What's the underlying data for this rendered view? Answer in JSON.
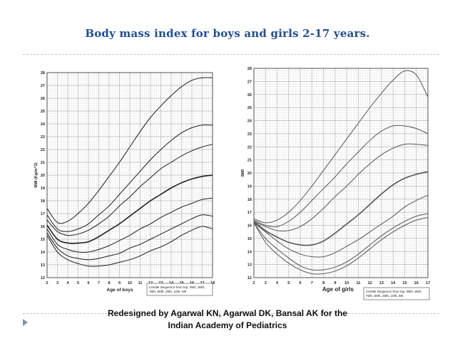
{
  "slide": {
    "title": "Body mass index for  boys and girls 2-17 years.",
    "credit_line1": "Redesigned by Agarwal KN, Agarwal DK, Bansal AK for the",
    "credit_line2": "Indian Academy of Pediatrics"
  },
  "colors": {
    "title": "#1f4e9a",
    "curve_boys": "#222222",
    "curve_girls": "#555555",
    "grid": "#c8c8c8"
  },
  "chart_data": [
    {
      "type": "line",
      "xlabel": "Age of boys",
      "ylabel": "BMI (Kg/m^2)",
      "xlim": [
        2,
        18
      ],
      "ylim": [
        12,
        28
      ],
      "x_ticks": [
        2,
        3,
        4,
        5,
        6,
        7,
        8,
        9,
        10,
        11,
        12,
        13,
        14,
        15,
        16,
        17,
        18
      ],
      "y_ticks": [
        12,
        13,
        14,
        15,
        16,
        17,
        18,
        19,
        20,
        21,
        22,
        23,
        24,
        25,
        26,
        27,
        28
      ],
      "grid": true,
      "legend_note": "Centile Sequence from top: 95th, 85th, 75th, 50th, 25th, 10th, 5th",
      "x": [
        2,
        3,
        4,
        5,
        6,
        7,
        8,
        9,
        10,
        11,
        12,
        13,
        14,
        15,
        16,
        17,
        18
      ],
      "series": [
        {
          "values": [
            17.4,
            16.3,
            16.4,
            17.0,
            17.8,
            18.8,
            19.9,
            21.0,
            22.2,
            23.4,
            24.5,
            25.4,
            26.2,
            26.9,
            27.4,
            27.6,
            27.6
          ]
        },
        {
          "values": [
            16.9,
            15.8,
            15.6,
            15.8,
            16.2,
            16.9,
            17.6,
            18.5,
            19.4,
            20.3,
            21.2,
            22.0,
            22.7,
            23.3,
            23.7,
            23.9,
            23.9
          ]
        },
        {
          "values": [
            16.5,
            15.6,
            15.3,
            15.4,
            15.7,
            16.2,
            16.8,
            17.6,
            18.3,
            19.1,
            19.8,
            20.5,
            21.0,
            21.5,
            21.9,
            22.2,
            22.4
          ]
        },
        {
          "values": [
            16.1,
            15.0,
            14.7,
            14.7,
            14.8,
            15.2,
            15.7,
            16.2,
            16.8,
            17.4,
            18.0,
            18.5,
            19.0,
            19.4,
            19.7,
            19.9,
            20.0
          ]
        },
        {
          "values": [
            15.8,
            14.6,
            14.2,
            14.0,
            14.0,
            14.2,
            14.5,
            14.9,
            15.3,
            15.8,
            16.2,
            16.7,
            17.1,
            17.5,
            17.8,
            18.1,
            18.2
          ]
        },
        {
          "values": [
            15.5,
            14.3,
            13.7,
            13.5,
            13.4,
            13.5,
            13.7,
            13.9,
            14.3,
            14.6,
            15.0,
            15.4,
            15.8,
            16.2,
            16.6,
            16.9,
            16.8
          ]
        },
        {
          "values": [
            15.3,
            14.0,
            13.4,
            13.1,
            12.9,
            12.9,
            13.0,
            13.2,
            13.4,
            13.7,
            14.1,
            14.4,
            14.8,
            15.3,
            15.7,
            16.0,
            15.8
          ]
        }
      ]
    },
    {
      "type": "line",
      "xlabel": "Age of girls",
      "ylabel": "BMI",
      "xlim": [
        2,
        17
      ],
      "ylim": [
        12,
        28
      ],
      "x_ticks": [
        2,
        3,
        4,
        5,
        6,
        7,
        8,
        9,
        10,
        11,
        12,
        13,
        14,
        15,
        16,
        17
      ],
      "y_ticks": [
        12,
        13,
        14,
        15,
        16,
        17,
        18,
        19,
        20,
        21,
        22,
        23,
        24,
        25,
        26,
        27,
        28
      ],
      "grid": true,
      "legend_note": "Centile Sequence from top: 95th, 85th, 75th, 50th, 25th, 10th, 5th",
      "x": [
        2,
        3,
        4,
        5,
        6,
        7,
        8,
        9,
        10,
        11,
        12,
        13,
        14,
        15,
        16,
        17
      ],
      "series": [
        {
          "values": [
            16.5,
            16.2,
            16.4,
            17.0,
            17.9,
            19.0,
            20.2,
            21.4,
            22.6,
            23.8,
            25.0,
            26.1,
            27.1,
            27.8,
            27.5,
            25.8
          ]
        },
        {
          "values": [
            16.4,
            16.0,
            15.9,
            16.3,
            17.0,
            17.9,
            18.8,
            19.7,
            20.7,
            21.6,
            22.5,
            23.2,
            23.6,
            23.6,
            23.4,
            23.0
          ]
        },
        {
          "values": [
            16.3,
            15.9,
            15.6,
            15.6,
            15.9,
            16.5,
            17.3,
            18.2,
            19.0,
            19.9,
            20.7,
            21.4,
            21.9,
            22.2,
            22.2,
            22.1
          ]
        },
        {
          "values": [
            16.3,
            15.6,
            15.1,
            14.7,
            14.5,
            14.5,
            14.8,
            15.4,
            16.1,
            16.8,
            17.6,
            18.4,
            19.1,
            19.6,
            19.9,
            20.1
          ]
        },
        {
          "values": [
            16.2,
            15.5,
            14.8,
            14.2,
            13.8,
            13.6,
            13.6,
            13.9,
            14.4,
            14.9,
            15.5,
            16.1,
            16.7,
            17.4,
            17.9,
            18.3
          ]
        },
        {
          "values": [
            16.2,
            15.0,
            14.2,
            13.5,
            12.9,
            12.6,
            12.6,
            12.8,
            13.2,
            13.8,
            14.5,
            15.2,
            15.8,
            16.3,
            16.7,
            16.9
          ]
        },
        {
          "values": [
            16.2,
            14.7,
            13.8,
            13.1,
            12.6,
            12.3,
            12.3,
            12.5,
            12.9,
            13.5,
            14.2,
            14.9,
            15.5,
            16.0,
            16.4,
            16.6
          ]
        }
      ]
    }
  ]
}
